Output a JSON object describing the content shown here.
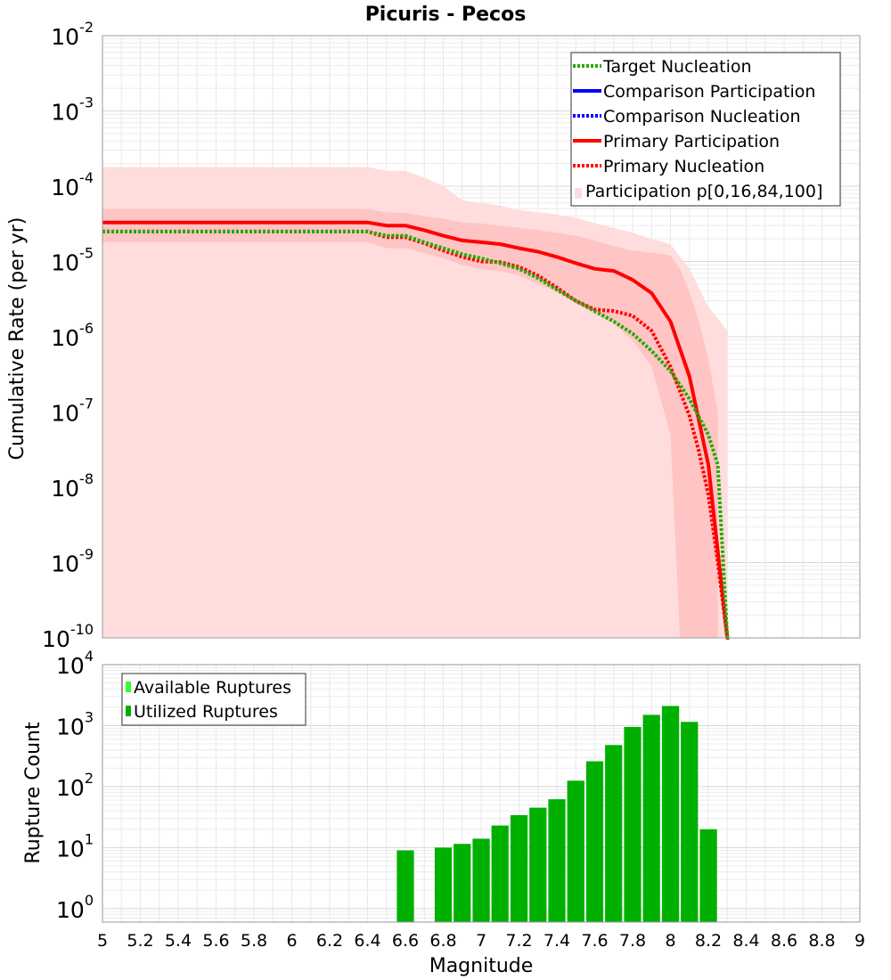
{
  "chart_data": [
    {
      "type": "line",
      "title": "Picuris - Pecos",
      "xlabel": "",
      "ylabel": "Cumulative Rate (per yr)",
      "xlim": [
        5,
        9
      ],
      "ylim": [
        1e-10,
        0.01
      ],
      "yscale": "log",
      "grid": true,
      "y_tick_labels": [
        {
          "base": "10",
          "exp": "-10",
          "value": 1e-10
        },
        {
          "base": "10",
          "exp": "-9",
          "value": 1e-09
        },
        {
          "base": "10",
          "exp": "-8",
          "value": 1e-08
        },
        {
          "base": "10",
          "exp": "-7",
          "value": 1e-07
        },
        {
          "base": "10",
          "exp": "-6",
          "value": 1e-06
        },
        {
          "base": "10",
          "exp": "-5",
          "value": 1e-05
        },
        {
          "base": "10",
          "exp": "-4",
          "value": 0.0001
        },
        {
          "base": "10",
          "exp": "-3",
          "value": 0.001
        },
        {
          "base": "10",
          "exp": "-2",
          "value": 0.01
        }
      ],
      "legend_position": "top-right",
      "legend": [
        {
          "label": "Target Nucleation",
          "color": "#22aa00",
          "style": "dotted"
        },
        {
          "label": "Comparison Participation",
          "color": "#0000ff",
          "style": "solid"
        },
        {
          "label": "Comparison Nucleation",
          "color": "#0000ff",
          "style": "dotted"
        },
        {
          "label": "Primary Participation",
          "color": "#ff0000",
          "style": "solid"
        },
        {
          "label": "Primary Nucleation",
          "color": "#ff0000",
          "style": "dotted"
        },
        {
          "label": "Participation p[0,16,84,100]",
          "color": "#ffdcdc",
          "style": "band"
        }
      ],
      "bands": [
        {
          "color": "#ffdddd",
          "x": [
            5.0,
            6.4,
            6.5,
            6.6,
            6.7,
            6.8,
            6.9,
            7.0,
            7.1,
            7.2,
            7.3,
            7.4,
            7.5,
            7.6,
            7.7,
            7.8,
            7.9,
            8.0,
            8.1,
            8.2,
            8.3
          ],
          "lower": [
            1e-10,
            1e-10,
            1e-10,
            1e-10,
            1e-10,
            1e-10,
            1e-10,
            1e-10,
            1e-10,
            1e-10,
            1e-10,
            1e-10,
            1e-10,
            1e-10,
            1e-10,
            1e-10,
            1e-10,
            1e-10,
            1e-10,
            1e-10,
            1e-10
          ],
          "upper": [
            0.00018,
            0.00018,
            0.00016,
            0.00016,
            0.00013,
            0.0001,
            6.5e-05,
            6e-05,
            5.5e-05,
            4.8e-05,
            4.5e-05,
            4.2e-05,
            3.8e-05,
            3.2e-05,
            2.8e-05,
            2.4e-05,
            2e-05,
            1.7e-05,
            8e-06,
            2.5e-06,
            1.2e-06
          ]
        },
        {
          "color": "#ffc4c4",
          "x": [
            5.0,
            6.4,
            6.5,
            6.6,
            6.7,
            6.8,
            6.9,
            7.0,
            7.1,
            7.2,
            7.3,
            7.4,
            7.5,
            7.6,
            7.7,
            7.8,
            7.9,
            8.0,
            8.05,
            8.1,
            8.15,
            8.2,
            8.25
          ],
          "lower": [
            1.8e-05,
            1.8e-05,
            1.5e-05,
            1.5e-05,
            1.3e-05,
            1.1e-05,
            9e-06,
            8e-06,
            7.5e-06,
            6.5e-06,
            5e-06,
            4e-06,
            2.8e-06,
            2e-06,
            1.5e-06,
            9e-07,
            4e-07,
            5e-08,
            1e-10,
            1e-10,
            1e-10,
            1e-10,
            1e-10
          ],
          "upper": [
            5e-05,
            5e-05,
            4.5e-05,
            4.4e-05,
            4e-05,
            3.7e-05,
            3.3e-05,
            3.2e-05,
            3e-05,
            2.8e-05,
            2.6e-05,
            2.4e-05,
            2.2e-05,
            1.9e-05,
            1.6e-05,
            1.4e-05,
            1.3e-05,
            1.2e-05,
            8e-06,
            4e-06,
            1.6e-06,
            5e-07,
            1e-07
          ]
        }
      ],
      "series": [
        {
          "name": "Primary Participation",
          "color": "#ff0000",
          "style": "solid",
          "x": [
            5.0,
            6.4,
            6.5,
            6.6,
            6.7,
            6.8,
            6.9,
            7.0,
            7.1,
            7.2,
            7.3,
            7.4,
            7.5,
            7.6,
            7.7,
            7.8,
            7.9,
            8.0,
            8.1,
            8.2,
            8.3,
            8.31
          ],
          "y": [
            3.3e-05,
            3.3e-05,
            3e-05,
            3e-05,
            2.6e-05,
            2.2e-05,
            1.9e-05,
            1.8e-05,
            1.7e-05,
            1.5e-05,
            1.35e-05,
            1.15e-05,
            9.5e-06,
            8e-06,
            7.5e-06,
            5.7e-06,
            3.8e-06,
            1.6e-06,
            3e-07,
            2e-08,
            1e-10,
            1e-10
          ]
        },
        {
          "name": "Primary Nucleation",
          "color": "#ff0000",
          "style": "dotted",
          "x": [
            5.0,
            6.4,
            6.5,
            6.6,
            6.7,
            6.8,
            6.9,
            7.0,
            7.1,
            7.2,
            7.3,
            7.4,
            7.5,
            7.6,
            7.7,
            7.8,
            7.9,
            8.0,
            8.1,
            8.15,
            8.2,
            8.25,
            8.3,
            8.31
          ],
          "y": [
            2.5e-05,
            2.5e-05,
            2.1e-05,
            2.1e-05,
            1.75e-05,
            1.4e-05,
            1.15e-05,
            1e-05,
            9.8e-06,
            8.5e-06,
            6.5e-06,
            4.5e-06,
            3e-06,
            2.3e-06,
            2.2e-06,
            1.9e-06,
            1.2e-06,
            4e-07,
            9e-08,
            3e-08,
            8e-09,
            1e-09,
            1e-10,
            1e-10
          ]
        },
        {
          "name": "Target Nucleation",
          "color": "#22aa00",
          "style": "dotted",
          "x": [
            5.0,
            6.4,
            6.5,
            6.6,
            6.7,
            6.8,
            6.9,
            7.0,
            7.1,
            7.2,
            7.3,
            7.4,
            7.5,
            7.6,
            7.7,
            7.8,
            7.9,
            8.0,
            8.1,
            8.2,
            8.25,
            8.3,
            8.31
          ],
          "y": [
            2.5e-05,
            2.5e-05,
            2.2e-05,
            2.2e-05,
            1.8e-05,
            1.5e-05,
            1.25e-05,
            1.1e-05,
            9.5e-06,
            8e-06,
            6e-06,
            4.2e-06,
            3e-06,
            2.2e-06,
            1.6e-06,
            1.1e-06,
            6.5e-07,
            3.5e-07,
            1.5e-07,
            5e-08,
            2e-08,
            1e-10,
            1e-10
          ]
        }
      ]
    },
    {
      "type": "bar",
      "xlabel": "Magnitude",
      "ylabel": "Rupture Count",
      "xlim": [
        5,
        9
      ],
      "ylim": [
        0.6,
        10000
      ],
      "yscale": "log",
      "grid": true,
      "x_ticks": [
        "5",
        "5.2",
        "5.4",
        "5.6",
        "5.8",
        "6",
        "6.2",
        "6.4",
        "6.6",
        "6.8",
        "7",
        "7.2",
        "7.4",
        "7.6",
        "7.8",
        "8",
        "8.2",
        "8.4",
        "8.6",
        "8.8",
        "9"
      ],
      "y_tick_labels": [
        {
          "base": "10",
          "exp": "0",
          "value": 1
        },
        {
          "base": "10",
          "exp": "1",
          "value": 10
        },
        {
          "base": "10",
          "exp": "2",
          "value": 100
        },
        {
          "base": "10",
          "exp": "3",
          "value": 1000
        },
        {
          "base": "10",
          "exp": "4",
          "value": 10000
        }
      ],
      "legend_position": "top-left",
      "legend": [
        {
          "label": "Available Ruptures",
          "color": "#33ff33"
        },
        {
          "label": "Utilized Ruptures",
          "color": "#00b000"
        }
      ],
      "bar_width": 0.1,
      "series": [
        {
          "name": "Utilized Ruptures",
          "color": "#00b000",
          "x": [
            6.6,
            6.8,
            6.9,
            7.0,
            7.1,
            7.2,
            7.3,
            7.4,
            7.5,
            7.6,
            7.7,
            7.8,
            7.9,
            8.0,
            8.1,
            8.2
          ],
          "values": [
            9,
            10,
            11.5,
            14,
            23,
            34,
            45,
            62,
            125,
            260,
            480,
            950,
            1500,
            2100,
            1150,
            20
          ]
        }
      ]
    }
  ]
}
